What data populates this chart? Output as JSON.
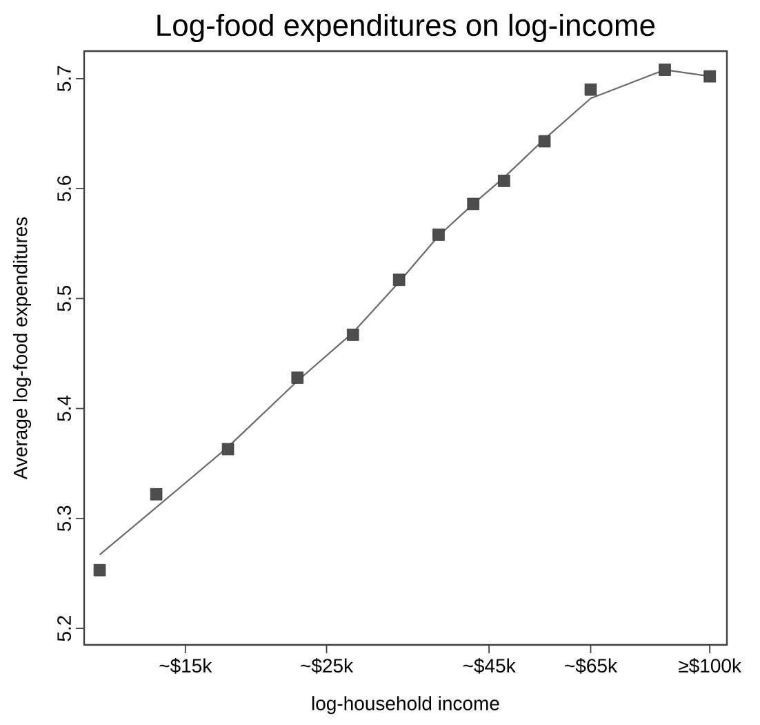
{
  "chart_data": {
    "type": "scatter",
    "title": "Log-food expenditures on log-income",
    "xlabel": "log-household income",
    "ylabel": "Average log-food expenditures",
    "log": "x",
    "x": [
      11,
      13.5,
      17.5,
      22.5,
      27.5,
      32.5,
      37.5,
      42.5,
      47.5,
      55,
      65,
      85,
      100
    ],
    "series": [
      {
        "color": "#4d4d4d",
        "marker": "square",
        "values": [
          5.253,
          5.322,
          5.363,
          5.428,
          5.467,
          5.517,
          5.558,
          5.586,
          5.607,
          5.643,
          5.69,
          5.708,
          5.702
        ]
      },
      {
        "type": "line",
        "color": "#6a6a6a",
        "marker": "none",
        "line_style": "solid",
        "values": [
          5.267,
          5.31,
          5.365,
          5.425,
          5.469,
          5.515,
          5.557,
          5.586,
          5.61,
          5.645,
          5.682,
          5.708,
          5.702
        ]
      }
    ],
    "xlim": [
      10.4,
      106.4
    ],
    "ylim": [
      5.185,
      5.725
    ],
    "xticks": [
      {
        "value": 15,
        "label": "~$15k"
      },
      {
        "value": 25,
        "label": "~$25k"
      },
      {
        "value": 45,
        "label": "~$45k"
      },
      {
        "value": 65,
        "label": "~$65k"
      },
      {
        "value": 100,
        "label": "≥$100k"
      }
    ],
    "yticks": [
      5.2,
      5.3,
      5.4,
      5.5,
      5.6,
      5.7
    ],
    "grid": false
  }
}
